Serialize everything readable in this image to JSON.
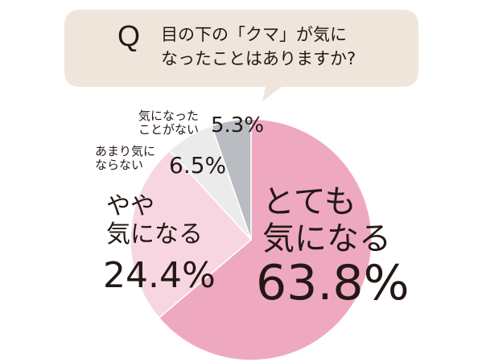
{
  "chart_data": {
    "type": "pie",
    "annotation": "Q",
    "title": "目の下の「クマ」が気に\nなったことはありますか?",
    "categories": [
      "とても\n気になる",
      "やや\n気になる",
      "あまり気に\nならない",
      "気になった\nことがない"
    ],
    "values": [
      63.8,
      24.4,
      6.5,
      5.3
    ],
    "value_labels": [
      "63.8%",
      "24.4%",
      "6.5%",
      "5.3%"
    ],
    "colors": [
      "#eea9c1",
      "#f8d6e1",
      "#ebebeb",
      "#b9bdc1"
    ]
  }
}
